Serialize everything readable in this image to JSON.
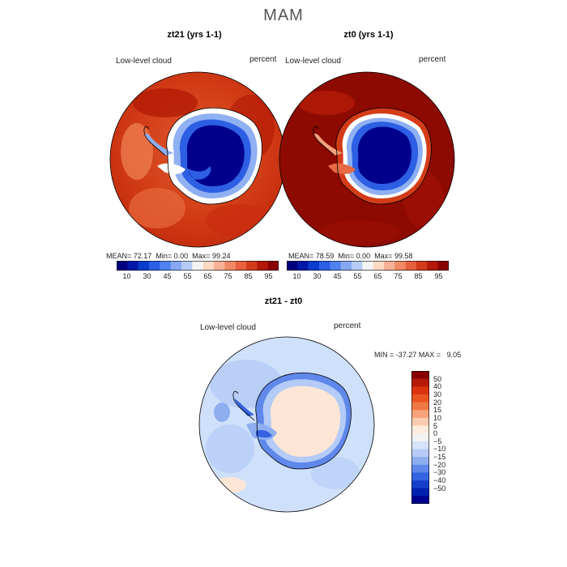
{
  "title": "MAM",
  "panels": [
    {
      "title": "zt21 (yrs 1-1)",
      "field": "Low-level cloud",
      "units": "percent",
      "stats": {
        "mean": "72.17",
        "min": "0.00",
        "max": "99.24"
      },
      "mean_label": "MEAN=",
      "min_label": "Min=",
      "max_label": "Max="
    },
    {
      "title": "zt0 (yrs 1-1)",
      "field": "Low-level cloud",
      "units": "percent",
      "stats": {
        "mean": "78.59",
        "min": "0.00",
        "max": "99.58"
      },
      "mean_label": "MEAN=",
      "min_label": "Min=",
      "max_label": "Max="
    }
  ],
  "colorbar_top": {
    "ticks": [
      "10",
      "30",
      "45",
      "55",
      "65",
      "75",
      "85",
      "95"
    ],
    "colors": [
      "#00007f",
      "#0018a8",
      "#0a3ccf",
      "#2a5fe6",
      "#4f82f0",
      "#86a8f2",
      "#b7ccf5",
      "#f4f4f4",
      "#fbd9c4",
      "#f7b296",
      "#f08a66",
      "#e7603e",
      "#d33a1c",
      "#b5170a",
      "#8a0000"
    ]
  },
  "diff_panel": {
    "title": "zt21 - zt0",
    "field": "Low-level cloud",
    "units": "percent",
    "min_label": "MIN =",
    "min": "-37.27",
    "max_label": "MAX =",
    "max": "9.05"
  },
  "colorbar_diff": {
    "ticks": [
      "50",
      "40",
      "30",
      "20",
      "15",
      "10",
      "5",
      "0",
      "−5",
      "−10",
      "−15",
      "−20",
      "−30",
      "−40",
      "−50"
    ],
    "colors": [
      "#8a0000",
      "#b51a08",
      "#d9330f",
      "#ea5420",
      "#f07844",
      "#f7a278",
      "#fbcbb0",
      "#fdebdd",
      "#f2f2f2",
      "#d6e3fa",
      "#b6cbf6",
      "#8eaef0",
      "#5f88ea",
      "#3563e2",
      "#1640cc",
      "#0021b0",
      "#000090"
    ]
  },
  "map_colors": {
    "ocean_high": "#c0300f",
    "ocean_max": "#8c0a00",
    "ice_low": "#00008c",
    "diff_ocean": "#cfe0fb",
    "diff_land": "#fde6d6",
    "diff_coast": "#1e4fd8"
  }
}
